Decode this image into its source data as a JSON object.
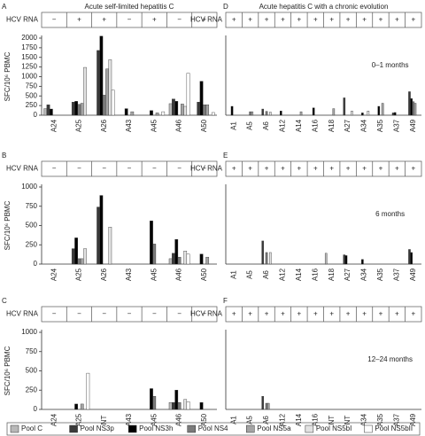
{
  "chart_data": [
    {
      "type": "bar",
      "panel": "A",
      "title": "Acute self-limited hepatitis C",
      "row_label": "HCV RNA",
      "hcv_rna": [
        "−",
        "+",
        "+",
        "−",
        "+",
        "−",
        "+"
      ],
      "categories": [
        "A24",
        "A25",
        "A26",
        "A43",
        "A45",
        "A46",
        "A50"
      ],
      "ylabel": "SFC/10⁶ PBMC",
      "ylim": [
        0,
        2000
      ],
      "yticks": [
        0,
        250,
        500,
        750,
        1000,
        1250,
        1500,
        1750,
        2000
      ],
      "series": [
        {
          "values": [
            170,
            0,
            0,
            0,
            0,
            300,
            0
          ]
        },
        {
          "values": [
            270,
            340,
            1680,
            0,
            0,
            420,
            340
          ]
        },
        {
          "values": [
            160,
            360,
            2050,
            170,
            120,
            360,
            880
          ]
        },
        {
          "values": [
            0,
            280,
            520,
            0,
            0,
            0,
            270
          ]
        },
        {
          "values": [
            0,
            310,
            1200,
            90,
            60,
            290,
            270
          ]
        },
        {
          "values": [
            0,
            1240,
            1440,
            0,
            0,
            230,
            0
          ]
        },
        {
          "values": [
            0,
            0,
            650,
            0,
            90,
            1090,
            70
          ]
        }
      ]
    },
    {
      "type": "bar",
      "panel": "B",
      "row_label": "HCV RNA",
      "hcv_rna": [
        "−",
        "−",
        "−",
        "−",
        "−",
        "−",
        "−"
      ],
      "categories": [
        "A24",
        "A25",
        "A26",
        "A43",
        "A45",
        "A46",
        "A50"
      ],
      "ylabel": "SFC/10⁶ PBMC",
      "ylim": [
        0,
        1000
      ],
      "yticks": [
        0,
        250,
        500,
        750,
        1000
      ],
      "series": [
        {
          "values": [
            0,
            0,
            0,
            0,
            0,
            70,
            0
          ]
        },
        {
          "values": [
            0,
            200,
            740,
            0,
            0,
            140,
            0
          ]
        },
        {
          "values": [
            0,
            340,
            890,
            0,
            560,
            320,
            130
          ]
        },
        {
          "values": [
            0,
            70,
            0,
            0,
            260,
            90,
            0
          ]
        },
        {
          "values": [
            0,
            70,
            0,
            0,
            0,
            0,
            90
          ]
        },
        {
          "values": [
            0,
            200,
            480,
            0,
            0,
            170,
            0
          ]
        },
        {
          "values": [
            0,
            0,
            0,
            0,
            0,
            130,
            0
          ]
        }
      ]
    },
    {
      "type": "bar",
      "panel": "C",
      "row_label": "HCV RNA",
      "hcv_rna": [
        "−",
        "−",
        "−",
        "−",
        "−",
        "−",
        "−"
      ],
      "categories": [
        "A24",
        "A25",
        "NT",
        "A43",
        "A45",
        "A46",
        "A50"
      ],
      "ylabel": "SFC/10⁶ PBMC",
      "ylim": [
        0,
        1000
      ],
      "yticks": [
        0,
        250,
        500,
        750,
        1000
      ],
      "series": [
        {
          "values": [
            0,
            0,
            null,
            0,
            0,
            90,
            0
          ]
        },
        {
          "values": [
            0,
            0,
            null,
            0,
            0,
            90,
            0
          ]
        },
        {
          "values": [
            0,
            70,
            null,
            0,
            270,
            250,
            90
          ]
        },
        {
          "values": [
            0,
            0,
            null,
            0,
            170,
            90,
            0
          ]
        },
        {
          "values": [
            0,
            70,
            null,
            0,
            0,
            0,
            0
          ]
        },
        {
          "values": [
            0,
            0,
            null,
            0,
            0,
            130,
            0
          ]
        },
        {
          "values": [
            0,
            470,
            null,
            0,
            0,
            100,
            0
          ]
        }
      ]
    },
    {
      "type": "bar",
      "panel": "D",
      "title": "Acute hepatitis C with a chronic evolution",
      "row_label": "HCV RNA",
      "annotation": "0–1 months",
      "hcv_rna": [
        "+",
        "+",
        "+",
        "+",
        "+",
        "+",
        "+",
        "+",
        "+",
        "+",
        "+",
        "+"
      ],
      "categories": [
        "A1",
        "A5",
        "A6",
        "A12",
        "A14",
        "A16",
        "A18",
        "A27",
        "A34",
        "A35",
        "A37",
        "A49"
      ],
      "ylim": [
        0,
        2000
      ],
      "series": [
        {
          "values": [
            0,
            0,
            0,
            0,
            0,
            0,
            0,
            0,
            0,
            0,
            0,
            0
          ]
        },
        {
          "values": [
            0,
            0,
            160,
            0,
            0,
            0,
            0,
            450,
            0,
            0,
            60,
            610
          ]
        },
        {
          "values": [
            230,
            0,
            0,
            110,
            0,
            190,
            0,
            0,
            60,
            230,
            70,
            430
          ]
        },
        {
          "values": [
            0,
            90,
            100,
            0,
            0,
            0,
            0,
            0,
            0,
            0,
            0,
            350
          ]
        },
        {
          "values": [
            0,
            90,
            0,
            0,
            90,
            0,
            170,
            0,
            0,
            310,
            0,
            310
          ]
        },
        {
          "values": [
            0,
            0,
            80,
            0,
            0,
            0,
            0,
            110,
            110,
            0,
            0,
            0
          ]
        },
        {
          "values": [
            0,
            0,
            0,
            0,
            0,
            0,
            0,
            0,
            0,
            0,
            0,
            0
          ]
        }
      ]
    },
    {
      "type": "bar",
      "panel": "E",
      "row_label": "HCV RNA",
      "annotation": "6 months",
      "hcv_rna": [
        "+",
        "+",
        "+",
        "+",
        "+",
        "+",
        "+",
        "+",
        "+",
        "+",
        "+",
        "+"
      ],
      "categories": [
        "A1",
        "A5",
        "A6",
        "A12",
        "A14",
        "A16",
        "A18",
        "A27",
        "A34",
        "A35",
        "A37",
        "A49"
      ],
      "ylim": [
        0,
        1000
      ],
      "series": [
        {
          "values": [
            0,
            0,
            0,
            0,
            0,
            0,
            140,
            0,
            0,
            0,
            0,
            0
          ]
        },
        {
          "values": [
            0,
            0,
            300,
            0,
            0,
            0,
            0,
            120,
            0,
            0,
            0,
            190
          ]
        },
        {
          "values": [
            0,
            0,
            0,
            0,
            0,
            0,
            0,
            110,
            60,
            0,
            0,
            150
          ]
        },
        {
          "values": [
            0,
            0,
            150,
            0,
            0,
            0,
            0,
            0,
            0,
            0,
            0,
            0
          ]
        },
        {
          "values": [
            0,
            0,
            0,
            0,
            0,
            0,
            0,
            0,
            0,
            0,
            0,
            0
          ]
        },
        {
          "values": [
            0,
            0,
            150,
            0,
            0,
            0,
            0,
            0,
            0,
            0,
            0,
            0
          ]
        },
        {
          "values": [
            0,
            0,
            0,
            0,
            0,
            0,
            0,
            0,
            0,
            0,
            0,
            0
          ]
        }
      ]
    },
    {
      "type": "bar",
      "panel": "F",
      "row_label": "HCV RNA",
      "annotation": "12–24 months",
      "hcv_rna": [
        "+",
        "+",
        "+",
        "+",
        "+",
        "+",
        "+",
        "+",
        "+",
        "+",
        "+",
        "+"
      ],
      "categories": [
        "A1",
        "A5",
        "A6",
        "A12",
        "A14",
        "A16",
        "NT",
        "NT",
        "A34",
        "A35",
        "A37",
        "A49"
      ],
      "ylim": [
        0,
        1000
      ],
      "series": [
        {
          "values": [
            0,
            0,
            0,
            0,
            0,
            0,
            null,
            null,
            0,
            0,
            0,
            0
          ]
        },
        {
          "values": [
            0,
            0,
            170,
            0,
            0,
            0,
            null,
            null,
            0,
            0,
            0,
            0
          ]
        },
        {
          "values": [
            0,
            0,
            0,
            0,
            0,
            0,
            null,
            null,
            0,
            0,
            0,
            0
          ]
        },
        {
          "values": [
            0,
            0,
            80,
            0,
            0,
            0,
            null,
            null,
            0,
            0,
            0,
            0
          ]
        },
        {
          "values": [
            0,
            0,
            80,
            0,
            0,
            0,
            null,
            null,
            0,
            0,
            0,
            0
          ]
        },
        {
          "values": [
            0,
            0,
            0,
            0,
            0,
            0,
            null,
            null,
            0,
            0,
            0,
            0
          ]
        },
        {
          "values": [
            0,
            0,
            0,
            0,
            0,
            0,
            null,
            null,
            0,
            0,
            0,
            0
          ]
        }
      ]
    }
  ],
  "legend": [
    {
      "name": "Pool C",
      "color": "#b8b8b8"
    },
    {
      "name": "Pool NS3p",
      "color": "#3a3a3a"
    },
    {
      "name": "Pool NS3h",
      "color": "#000000"
    },
    {
      "name": "Pool NS4",
      "color": "#7a7a7a"
    },
    {
      "name": "Pool NS5a",
      "color": "#a4a4a4"
    },
    {
      "name": "Pool NS5bI",
      "color": "#e2e2e2"
    },
    {
      "name": "Pool NS5bII",
      "color": "#ffffff"
    }
  ]
}
